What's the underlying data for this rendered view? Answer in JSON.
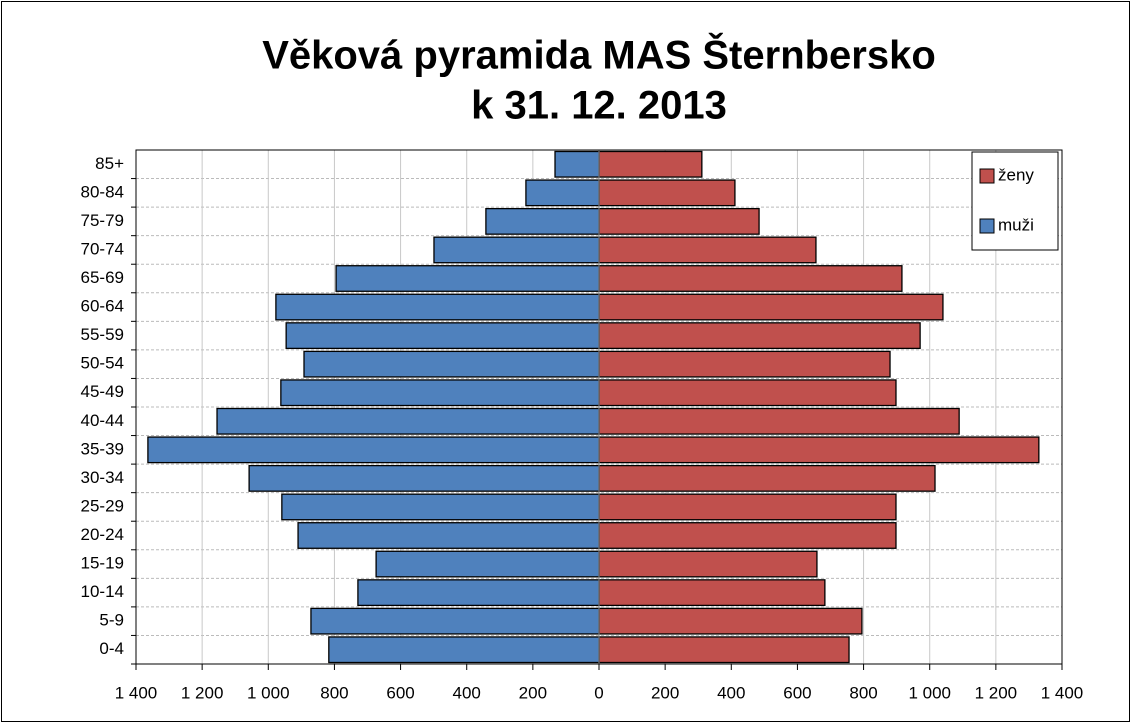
{
  "chart_data": {
    "type": "pyramid",
    "title": "Věková pyramida MAS Šternbersko",
    "subtitle": "k 31. 12. 2013",
    "categories": [
      "0-4",
      "5-9",
      "10-14",
      "15-19",
      "20-24",
      "25-29",
      "30-34",
      "35-39",
      "40-44",
      "45-49",
      "50-54",
      "55-59",
      "60-64",
      "65-69",
      "70-74",
      "75-79",
      "80-84",
      "85+"
    ],
    "series": [
      {
        "name": "ženy",
        "color": "#c0504d",
        "values": [
          756,
          795,
          683,
          659,
          898,
          898,
          1016,
          1330,
          1089,
          898,
          880,
          971,
          1040,
          916,
          656,
          484,
          411,
          311
        ]
      },
      {
        "name": "muži",
        "color": "#4f81bd",
        "values": [
          -817,
          -871,
          -729,
          -674,
          -910,
          -959,
          -1058,
          -1364,
          -1155,
          -962,
          -892,
          -946,
          -977,
          -795,
          -499,
          -342,
          -221,
          -133
        ]
      }
    ],
    "xlim": [
      -1400,
      1400
    ],
    "xticks": [
      {
        "value": -1400,
        "label": "1 400"
      },
      {
        "value": -1200,
        "label": "1 200"
      },
      {
        "value": -1000,
        "label": "1 000"
      },
      {
        "value": -800,
        "label": "800"
      },
      {
        "value": -600,
        "label": "600"
      },
      {
        "value": -400,
        "label": "400"
      },
      {
        "value": -200,
        "label": "200"
      },
      0,
      200,
      400,
      600,
      800,
      {
        "value": 1000,
        "label": "1 000"
      },
      {
        "value": 1200,
        "label": "1 200"
      },
      {
        "value": 1400,
        "label": "1 400"
      }
    ],
    "grid": true,
    "legend": "top-right"
  }
}
